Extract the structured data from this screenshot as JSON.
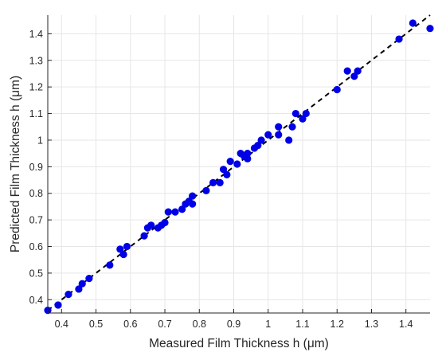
{
  "chart_data": {
    "type": "scatter",
    "xlabel": "Measured Film Thickness h (μm)",
    "ylabel": "Predicted Film Thickness h (μm)",
    "xlim": [
      0.36,
      1.47
    ],
    "ylim": [
      0.35,
      1.47
    ],
    "grid": true,
    "xticks": [
      0.4,
      0.5,
      0.6,
      0.7,
      0.8,
      0.9,
      1,
      1.1,
      1.2,
      1.3,
      1.4
    ],
    "yticks": [
      0.4,
      0.5,
      0.6,
      0.7,
      0.8,
      0.9,
      1,
      1.1,
      1.2,
      1.3,
      1.4
    ],
    "tick_labels_x": [
      "0.4",
      "0.5",
      "0.6",
      "0.7",
      "0.8",
      "0.9",
      "1",
      "1.1",
      "1.2",
      "1.3",
      "1.4"
    ],
    "tick_labels_y": [
      "0.4",
      "0.5",
      "0.6",
      "0.7",
      "0.8",
      "0.9",
      "1",
      "1.1",
      "1.2",
      "1.3",
      "1.4"
    ],
    "colors": {
      "points": "#0000e6",
      "reference_line": "#000000",
      "grid": "#e6e6e6",
      "axis": "#262626"
    },
    "reference_line": {
      "style": "dashed",
      "x": [
        0.36,
        1.47
      ],
      "y": [
        0.36,
        1.47
      ]
    },
    "points": [
      {
        "x": 0.36,
        "y": 0.36
      },
      {
        "x": 0.39,
        "y": 0.38
      },
      {
        "x": 0.42,
        "y": 0.42
      },
      {
        "x": 0.45,
        "y": 0.44
      },
      {
        "x": 0.46,
        "y": 0.46
      },
      {
        "x": 0.48,
        "y": 0.48
      },
      {
        "x": 0.54,
        "y": 0.53
      },
      {
        "x": 0.57,
        "y": 0.59
      },
      {
        "x": 0.58,
        "y": 0.57
      },
      {
        "x": 0.59,
        "y": 0.6
      },
      {
        "x": 0.64,
        "y": 0.64
      },
      {
        "x": 0.65,
        "y": 0.67
      },
      {
        "x": 0.66,
        "y": 0.68
      },
      {
        "x": 0.68,
        "y": 0.67
      },
      {
        "x": 0.69,
        "y": 0.68
      },
      {
        "x": 0.7,
        "y": 0.69
      },
      {
        "x": 0.71,
        "y": 0.73
      },
      {
        "x": 0.73,
        "y": 0.73
      },
      {
        "x": 0.75,
        "y": 0.74
      },
      {
        "x": 0.76,
        "y": 0.76
      },
      {
        "x": 0.77,
        "y": 0.77
      },
      {
        "x": 0.78,
        "y": 0.79
      },
      {
        "x": 0.78,
        "y": 0.76
      },
      {
        "x": 0.82,
        "y": 0.81
      },
      {
        "x": 0.84,
        "y": 0.84
      },
      {
        "x": 0.86,
        "y": 0.84
      },
      {
        "x": 0.87,
        "y": 0.89
      },
      {
        "x": 0.88,
        "y": 0.87
      },
      {
        "x": 0.89,
        "y": 0.92
      },
      {
        "x": 0.91,
        "y": 0.91
      },
      {
        "x": 0.92,
        "y": 0.95
      },
      {
        "x": 0.93,
        "y": 0.94
      },
      {
        "x": 0.94,
        "y": 0.95
      },
      {
        "x": 0.94,
        "y": 0.93
      },
      {
        "x": 0.96,
        "y": 0.97
      },
      {
        "x": 0.97,
        "y": 0.98
      },
      {
        "x": 0.98,
        "y": 1.0
      },
      {
        "x": 1.0,
        "y": 1.02
      },
      {
        "x": 1.03,
        "y": 1.05
      },
      {
        "x": 1.03,
        "y": 1.02
      },
      {
        "x": 1.06,
        "y": 1.0
      },
      {
        "x": 1.07,
        "y": 1.05
      },
      {
        "x": 1.08,
        "y": 1.1
      },
      {
        "x": 1.1,
        "y": 1.08
      },
      {
        "x": 1.11,
        "y": 1.1
      },
      {
        "x": 1.2,
        "y": 1.19
      },
      {
        "x": 1.23,
        "y": 1.26
      },
      {
        "x": 1.25,
        "y": 1.24
      },
      {
        "x": 1.26,
        "y": 1.26
      },
      {
        "x": 1.38,
        "y": 1.38
      },
      {
        "x": 1.42,
        "y": 1.44
      },
      {
        "x": 1.47,
        "y": 1.42
      }
    ]
  }
}
